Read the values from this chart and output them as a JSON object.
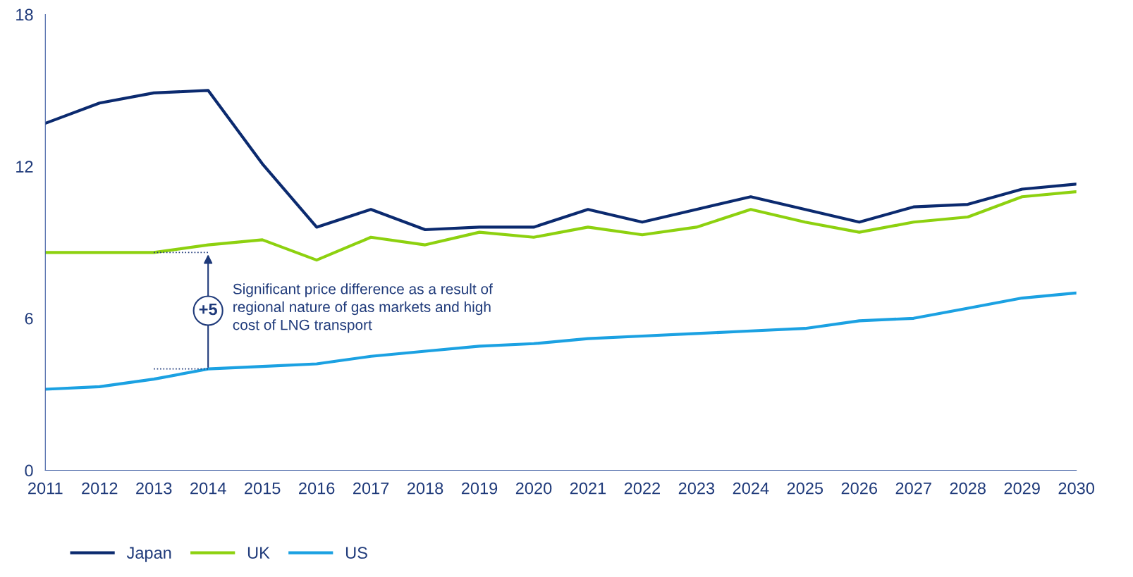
{
  "chart_data": {
    "type": "line",
    "categories": [
      "2011",
      "2012",
      "2013",
      "2014",
      "2015",
      "2016",
      "2017",
      "2018",
      "2019",
      "2020",
      "2021",
      "2022",
      "2023",
      "2024",
      "2025",
      "2026",
      "2027",
      "2028",
      "2029",
      "2030"
    ],
    "series": [
      {
        "name": "Japan",
        "color": "#0b2a6f",
        "values": [
          13.7,
          14.5,
          14.9,
          15.0,
          12.1,
          9.6,
          10.3,
          9.5,
          9.6,
          9.6,
          10.3,
          9.8,
          10.3,
          10.8,
          10.3,
          9.8,
          10.4,
          10.5,
          11.1,
          11.3
        ]
      },
      {
        "name": "UK",
        "color": "#8dd10f",
        "values": [
          8.6,
          8.6,
          8.6,
          8.9,
          9.1,
          8.3,
          9.2,
          8.9,
          9.4,
          9.2,
          9.6,
          9.3,
          9.6,
          10.3,
          9.8,
          9.4,
          9.8,
          10.0,
          10.8,
          11.0
        ]
      },
      {
        "name": "US",
        "color": "#1ba1e2",
        "values": [
          3.2,
          3.3,
          3.6,
          4.0,
          4.1,
          4.2,
          4.5,
          4.7,
          4.9,
          5.0,
          5.2,
          5.3,
          5.4,
          5.5,
          5.6,
          5.9,
          6.0,
          6.4,
          6.8,
          7.0
        ]
      }
    ],
    "ylim": [
      0,
      18
    ],
    "yticks": [
      0,
      6,
      12,
      18
    ],
    "grid": false,
    "legend": "bottom left",
    "marker": "none",
    "line_style": "solid",
    "annotations": [
      "+5",
      "Significant price difference as a result of\nregional nature of gas markets and high\ncost of LNG transport"
    ]
  }
}
